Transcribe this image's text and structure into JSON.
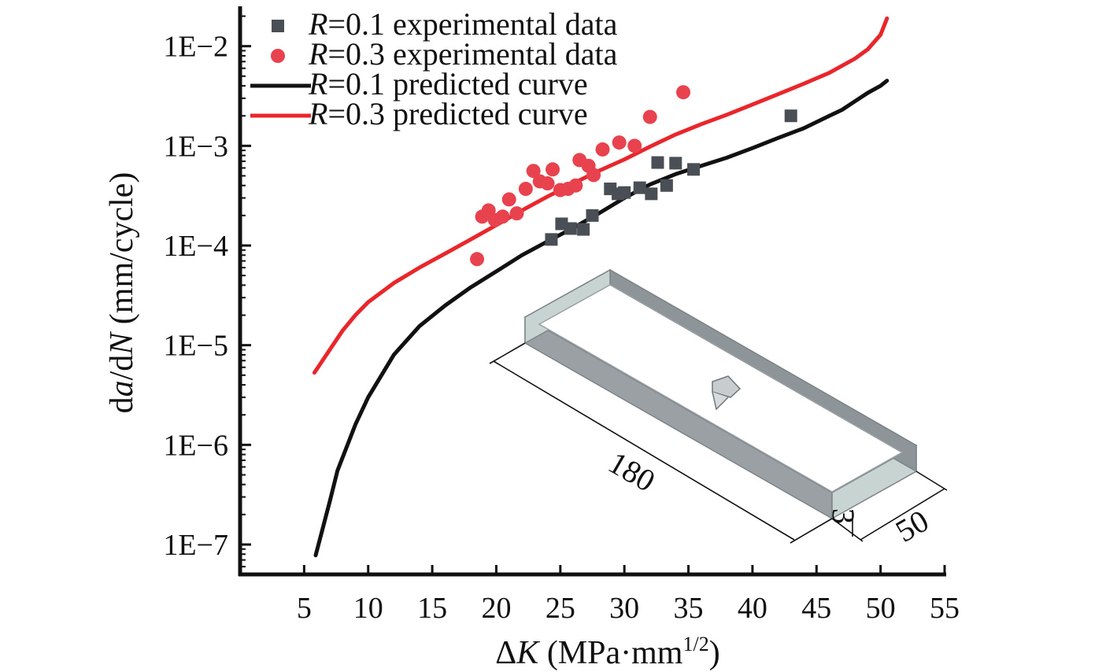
{
  "chart_data": {
    "type": "scatter",
    "title": "",
    "xlabel_delta": "Δ",
    "xlabel_var": "K",
    "xlabel_unit": " (MPa·mm",
    "xlabel_sup": "1/2",
    "xlabel_close": ")",
    "ylabel_prefix": "d",
    "ylabel_a": "a",
    "ylabel_mid": "/d",
    "ylabel_n": "N",
    "ylabel_unit": " (mm/cycle)",
    "xlim": [
      0,
      55
    ],
    "ylim_log10": [
      -7.3,
      -1.6
    ],
    "yscale": "log",
    "grid": false,
    "legend_position": "top-left",
    "x_ticks": [
      5,
      10,
      15,
      20,
      25,
      30,
      35,
      40,
      45,
      50,
      55
    ],
    "y_ticks": [
      {
        "exp": -2,
        "label": "1E−2"
      },
      {
        "exp": -3,
        "label": "1E−3"
      },
      {
        "exp": -4,
        "label": "1E−4"
      },
      {
        "exp": -5,
        "label": "1E−5"
      },
      {
        "exp": -6,
        "label": "1E−6"
      },
      {
        "exp": -7,
        "label": "1E−7"
      }
    ],
    "series": [
      {
        "name": "R=0.1 experimental data",
        "legend_var": "R",
        "legend_rest": "=0.1 experimental data",
        "kind": "scatter",
        "marker": "square",
        "color": "#4a4f55",
        "points": [
          [
            24.3,
            0.000115
          ],
          [
            25.1,
            0.000165
          ],
          [
            25.8,
            0.000148
          ],
          [
            26.8,
            0.000145
          ],
          [
            27.5,
            0.0002
          ],
          [
            28.9,
            0.00037
          ],
          [
            29.5,
            0.00033
          ],
          [
            30.0,
            0.00034
          ],
          [
            31.2,
            0.00038
          ],
          [
            32.1,
            0.00033
          ],
          [
            32.6,
            0.00068
          ],
          [
            33.3,
            0.0004
          ],
          [
            34.0,
            0.00067
          ],
          [
            35.4,
            0.00058
          ],
          [
            43.0,
            0.002
          ]
        ]
      },
      {
        "name": "R=0.3 experimental data",
        "legend_var": "R",
        "legend_rest": "=0.3 experimental data",
        "kind": "scatter",
        "marker": "circle",
        "color": "#e8424f",
        "points": [
          [
            18.5,
            7.3e-05
          ],
          [
            18.9,
            0.000195
          ],
          [
            19.4,
            0.000225
          ],
          [
            19.9,
            0.00018
          ],
          [
            20.5,
            0.000195
          ],
          [
            21.0,
            0.00029
          ],
          [
            21.6,
            0.00021
          ],
          [
            22.3,
            0.00037
          ],
          [
            22.9,
            0.00056
          ],
          [
            23.4,
            0.00044
          ],
          [
            24.0,
            0.00042
          ],
          [
            24.4,
            0.00058
          ],
          [
            25.0,
            0.00036
          ],
          [
            25.6,
            0.00037
          ],
          [
            26.2,
            0.0004
          ],
          [
            26.5,
            0.00072
          ],
          [
            27.2,
            0.00063
          ],
          [
            27.6,
            0.00051
          ],
          [
            28.3,
            0.00092
          ],
          [
            29.6,
            0.00108
          ],
          [
            30.8,
            0.001
          ],
          [
            32.0,
            0.00195
          ],
          [
            34.6,
            0.00345
          ]
        ]
      },
      {
        "name": "R=0.1 predicted curve",
        "legend_var": "R",
        "legend_rest": "=0.1 predicted curve",
        "kind": "line",
        "color": "#111111",
        "points": [
          [
            5.9,
            7.8e-08
          ],
          [
            7.0,
            2.7e-07
          ],
          [
            7.6,
            5.5e-07
          ],
          [
            9.0,
            1.6e-06
          ],
          [
            10.0,
            3e-06
          ],
          [
            12.0,
            8e-06
          ],
          [
            14.0,
            1.55e-05
          ],
          [
            16.0,
            2.5e-05
          ],
          [
            18.0,
            3.8e-05
          ],
          [
            20.0,
            5.5e-05
          ],
          [
            22.0,
            8e-05
          ],
          [
            24.0,
            0.00011
          ],
          [
            26.0,
            0.00015
          ],
          [
            28.0,
            0.00021
          ],
          [
            30.0,
            0.0003
          ],
          [
            32.0,
            0.00041
          ],
          [
            34.0,
            0.00052
          ],
          [
            36.0,
            0.00063
          ],
          [
            38.0,
            0.00076
          ],
          [
            40.0,
            0.00095
          ],
          [
            42.0,
            0.0012
          ],
          [
            44.0,
            0.0015
          ],
          [
            46.0,
            0.002
          ],
          [
            47.0,
            0.0023
          ],
          [
            48.0,
            0.0028
          ],
          [
            49.0,
            0.0034
          ],
          [
            50.0,
            0.004
          ],
          [
            50.5,
            0.0045
          ]
        ]
      },
      {
        "name": "R=0.3 predicted curve",
        "legend_var": "R",
        "legend_rest": "=0.3 predicted curve",
        "kind": "line",
        "color": "#e8262c",
        "points": [
          [
            5.8,
            5.3e-06
          ],
          [
            7.0,
            9e-06
          ],
          [
            8.0,
            1.4e-05
          ],
          [
            9.0,
            2e-05
          ],
          [
            10.0,
            2.7e-05
          ],
          [
            12.0,
            4.2e-05
          ],
          [
            14.0,
            6e-05
          ],
          [
            16.0,
            8.3e-05
          ],
          [
            18.0,
            0.000115
          ],
          [
            20.0,
            0.00016
          ],
          [
            22.0,
            0.000225
          ],
          [
            24.0,
            0.00031
          ],
          [
            26.0,
            0.00042
          ],
          [
            28.0,
            0.00056
          ],
          [
            30.0,
            0.00073
          ],
          [
            32.0,
            0.00098
          ],
          [
            34.0,
            0.0013
          ],
          [
            36.0,
            0.00165
          ],
          [
            38.0,
            0.00205
          ],
          [
            40.0,
            0.0026
          ],
          [
            42.0,
            0.0033
          ],
          [
            44.0,
            0.0042
          ],
          [
            46.0,
            0.0054
          ],
          [
            48.0,
            0.0075
          ],
          [
            49.0,
            0.0093
          ],
          [
            50.0,
            0.013
          ],
          [
            50.5,
            0.019
          ]
        ]
      }
    ],
    "inset": {
      "dim_length": "180",
      "dim_thickness": "3",
      "dim_width": "50"
    }
  }
}
